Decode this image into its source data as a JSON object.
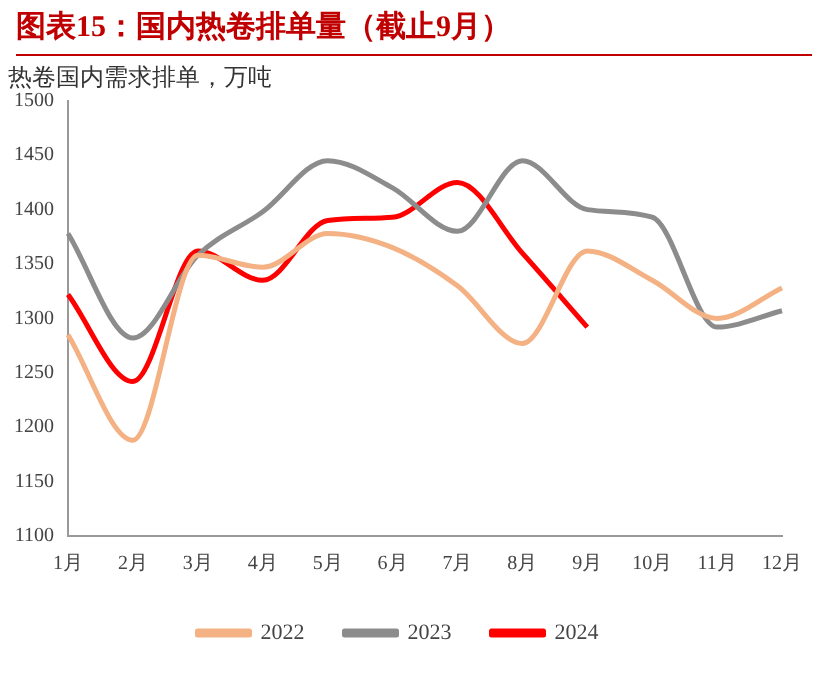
{
  "chart_data": {
    "type": "line",
    "title": "图表15：国内热卷排单量（截止9月）",
    "subtitle": "热卷国内需求排单，万吨",
    "categories": [
      "1月",
      "2月",
      "3月",
      "4月",
      "5月",
      "6月",
      "7月",
      "8月",
      "9月",
      "10月",
      "11月",
      "12月"
    ],
    "series": [
      {
        "name": "2022",
        "color": "#f4b183",
        "values": [
          1285,
          1188,
          1358,
          1347,
          1378,
          1365,
          1330,
          1277,
          1362,
          1335,
          1300,
          1328
        ]
      },
      {
        "name": "2023",
        "color": "#8c8c8c",
        "values": [
          1378,
          1282,
          1358,
          1398,
          1445,
          1420,
          1380,
          1445,
          1400,
          1393,
          1292,
          1307
        ]
      },
      {
        "name": "2024",
        "color": "#ff0000",
        "values": [
          1322,
          1242,
          1362,
          1335,
          1390,
          1393,
          1425,
          1360,
          1292,
          null,
          null,
          null
        ]
      }
    ],
    "ylim": [
      1100,
      1500
    ],
    "yticks": [
      1100,
      1150,
      1200,
      1250,
      1300,
      1350,
      1400,
      1450,
      1500
    ],
    "grid": false,
    "legend": "bottom",
    "marker": "none",
    "line_style": "solid"
  }
}
